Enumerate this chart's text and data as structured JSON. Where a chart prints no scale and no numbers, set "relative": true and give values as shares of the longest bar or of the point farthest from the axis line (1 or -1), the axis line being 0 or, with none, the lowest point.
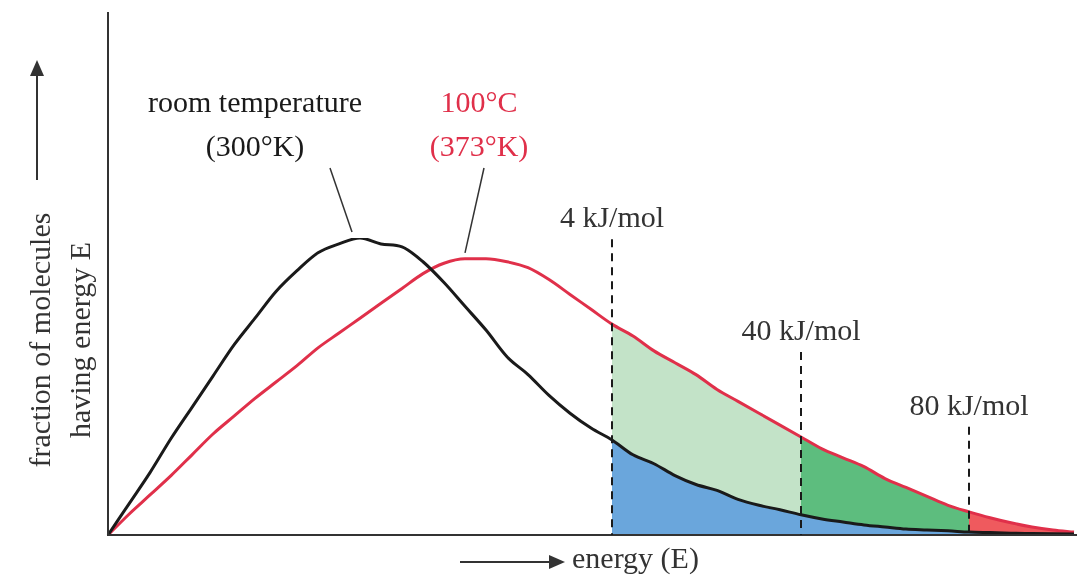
{
  "chart_data": {
    "type": "line",
    "relative": true,
    "xlabel": "energy (E)",
    "ylabel": "fraction of molecules having energy E",
    "categories": [
      null,
      null,
      null,
      null,
      null,
      null,
      null,
      null,
      null,
      null,
      null,
      null,
      null,
      null,
      null,
      null,
      null,
      null,
      null,
      null,
      null,
      null,
      null,
      null,
      null,
      null,
      null,
      null,
      null,
      null,
      null,
      null,
      null,
      null,
      null,
      null,
      null,
      null,
      null,
      null,
      null,
      null,
      null,
      null,
      null,
      null,
      null
    ],
    "series": [
      {
        "name": "room temperature (300°K)",
        "color": "#1a1a1a",
        "values": [
          0,
          0.105,
          0.21,
          0.325,
          0.43,
          0.535,
          0.64,
          0.73,
          0.82,
          0.89,
          0.95,
          0.98,
          1,
          0.98,
          0.97,
          0.92,
          0.85,
          0.77,
          0.69,
          0.6,
          0.54,
          0.47,
          0.41,
          0.36,
          0.32,
          0.27,
          0.24,
          0.2,
          0.17,
          0.15,
          0.12,
          0.1,
          0.085,
          0.068,
          0.054,
          0.044,
          0.034,
          0.027,
          0.02,
          0.017,
          0.014,
          0.01,
          0.008,
          0.006,
          0.005,
          0.004,
          0.003
        ]
      },
      {
        "name": "100°C (373°K)",
        "color": "#e0304a",
        "values": [
          0,
          0.07,
          0.135,
          0.2,
          0.27,
          0.34,
          0.4,
          0.46,
          0.515,
          0.57,
          0.63,
          0.68,
          0.73,
          0.78,
          0.83,
          0.88,
          0.915,
          0.93,
          0.93,
          0.92,
          0.9,
          0.86,
          0.81,
          0.76,
          0.71,
          0.67,
          0.62,
          0.58,
          0.54,
          0.49,
          0.45,
          0.41,
          0.37,
          0.33,
          0.29,
          0.26,
          0.23,
          0.19,
          0.16,
          0.13,
          0.1,
          0.078,
          0.058,
          0.041,
          0.027,
          0.017,
          0.01
        ]
      },
      {
        "type": "area",
        "color": "#6aa6dc",
        "values": [
          null,
          null,
          null,
          null,
          null,
          null,
          null,
          null,
          null,
          null,
          null,
          null,
          null,
          null,
          null,
          null,
          null,
          null,
          null,
          null,
          null,
          null,
          null,
          null,
          0.32,
          0.27,
          0.24,
          0.2,
          0.17,
          0.15,
          0.12,
          0.1,
          0.085,
          0.068,
          0.054,
          0.044,
          0.034,
          0.027,
          0.02,
          0.017,
          0.014,
          0.01,
          0.008,
          0.006,
          0.005,
          0.004,
          0.003
        ]
      },
      {
        "type": "area",
        "color": "#c3e3c8",
        "values": [
          null,
          null,
          null,
          null,
          null,
          null,
          null,
          null,
          null,
          null,
          null,
          null,
          null,
          null,
          null,
          null,
          null,
          null,
          null,
          null,
          null,
          null,
          null,
          null,
          0.71,
          0.67,
          0.62,
          0.58,
          0.54,
          0.49,
          0.45,
          0.41,
          0.37,
          0.33,
          null,
          null,
          null,
          null,
          null,
          null,
          null,
          null,
          null,
          null,
          null,
          null,
          null
        ]
      },
      {
        "type": "area",
        "color": "#5dbd7e",
        "values": [
          null,
          null,
          null,
          null,
          null,
          null,
          null,
          null,
          null,
          null,
          null,
          null,
          null,
          null,
          null,
          null,
          null,
          null,
          null,
          null,
          null,
          null,
          null,
          null,
          null,
          null,
          null,
          null,
          null,
          null,
          null,
          null,
          null,
          0.33,
          0.29,
          0.26,
          0.23,
          0.19,
          0.16,
          0.13,
          0.1,
          0.078,
          null,
          null,
          null,
          null,
          null
        ]
      },
      {
        "type": "area",
        "color": "#ef5a5e",
        "values": [
          null,
          null,
          null,
          null,
          null,
          null,
          null,
          null,
          null,
          null,
          null,
          null,
          null,
          null,
          null,
          null,
          null,
          null,
          null,
          null,
          null,
          null,
          null,
          null,
          null,
          null,
          null,
          null,
          null,
          null,
          null,
          null,
          null,
          null,
          null,
          null,
          null,
          null,
          null,
          null,
          null,
          0.078,
          0.058,
          0.041,
          0.027,
          0.017,
          0.01
        ]
      }
    ],
    "annotations": [
      "4 kJ/mol",
      "40 kJ/mol",
      "80 kJ/mol"
    ],
    "legend": false,
    "marker": "none",
    "line_style": "solid"
  }
}
